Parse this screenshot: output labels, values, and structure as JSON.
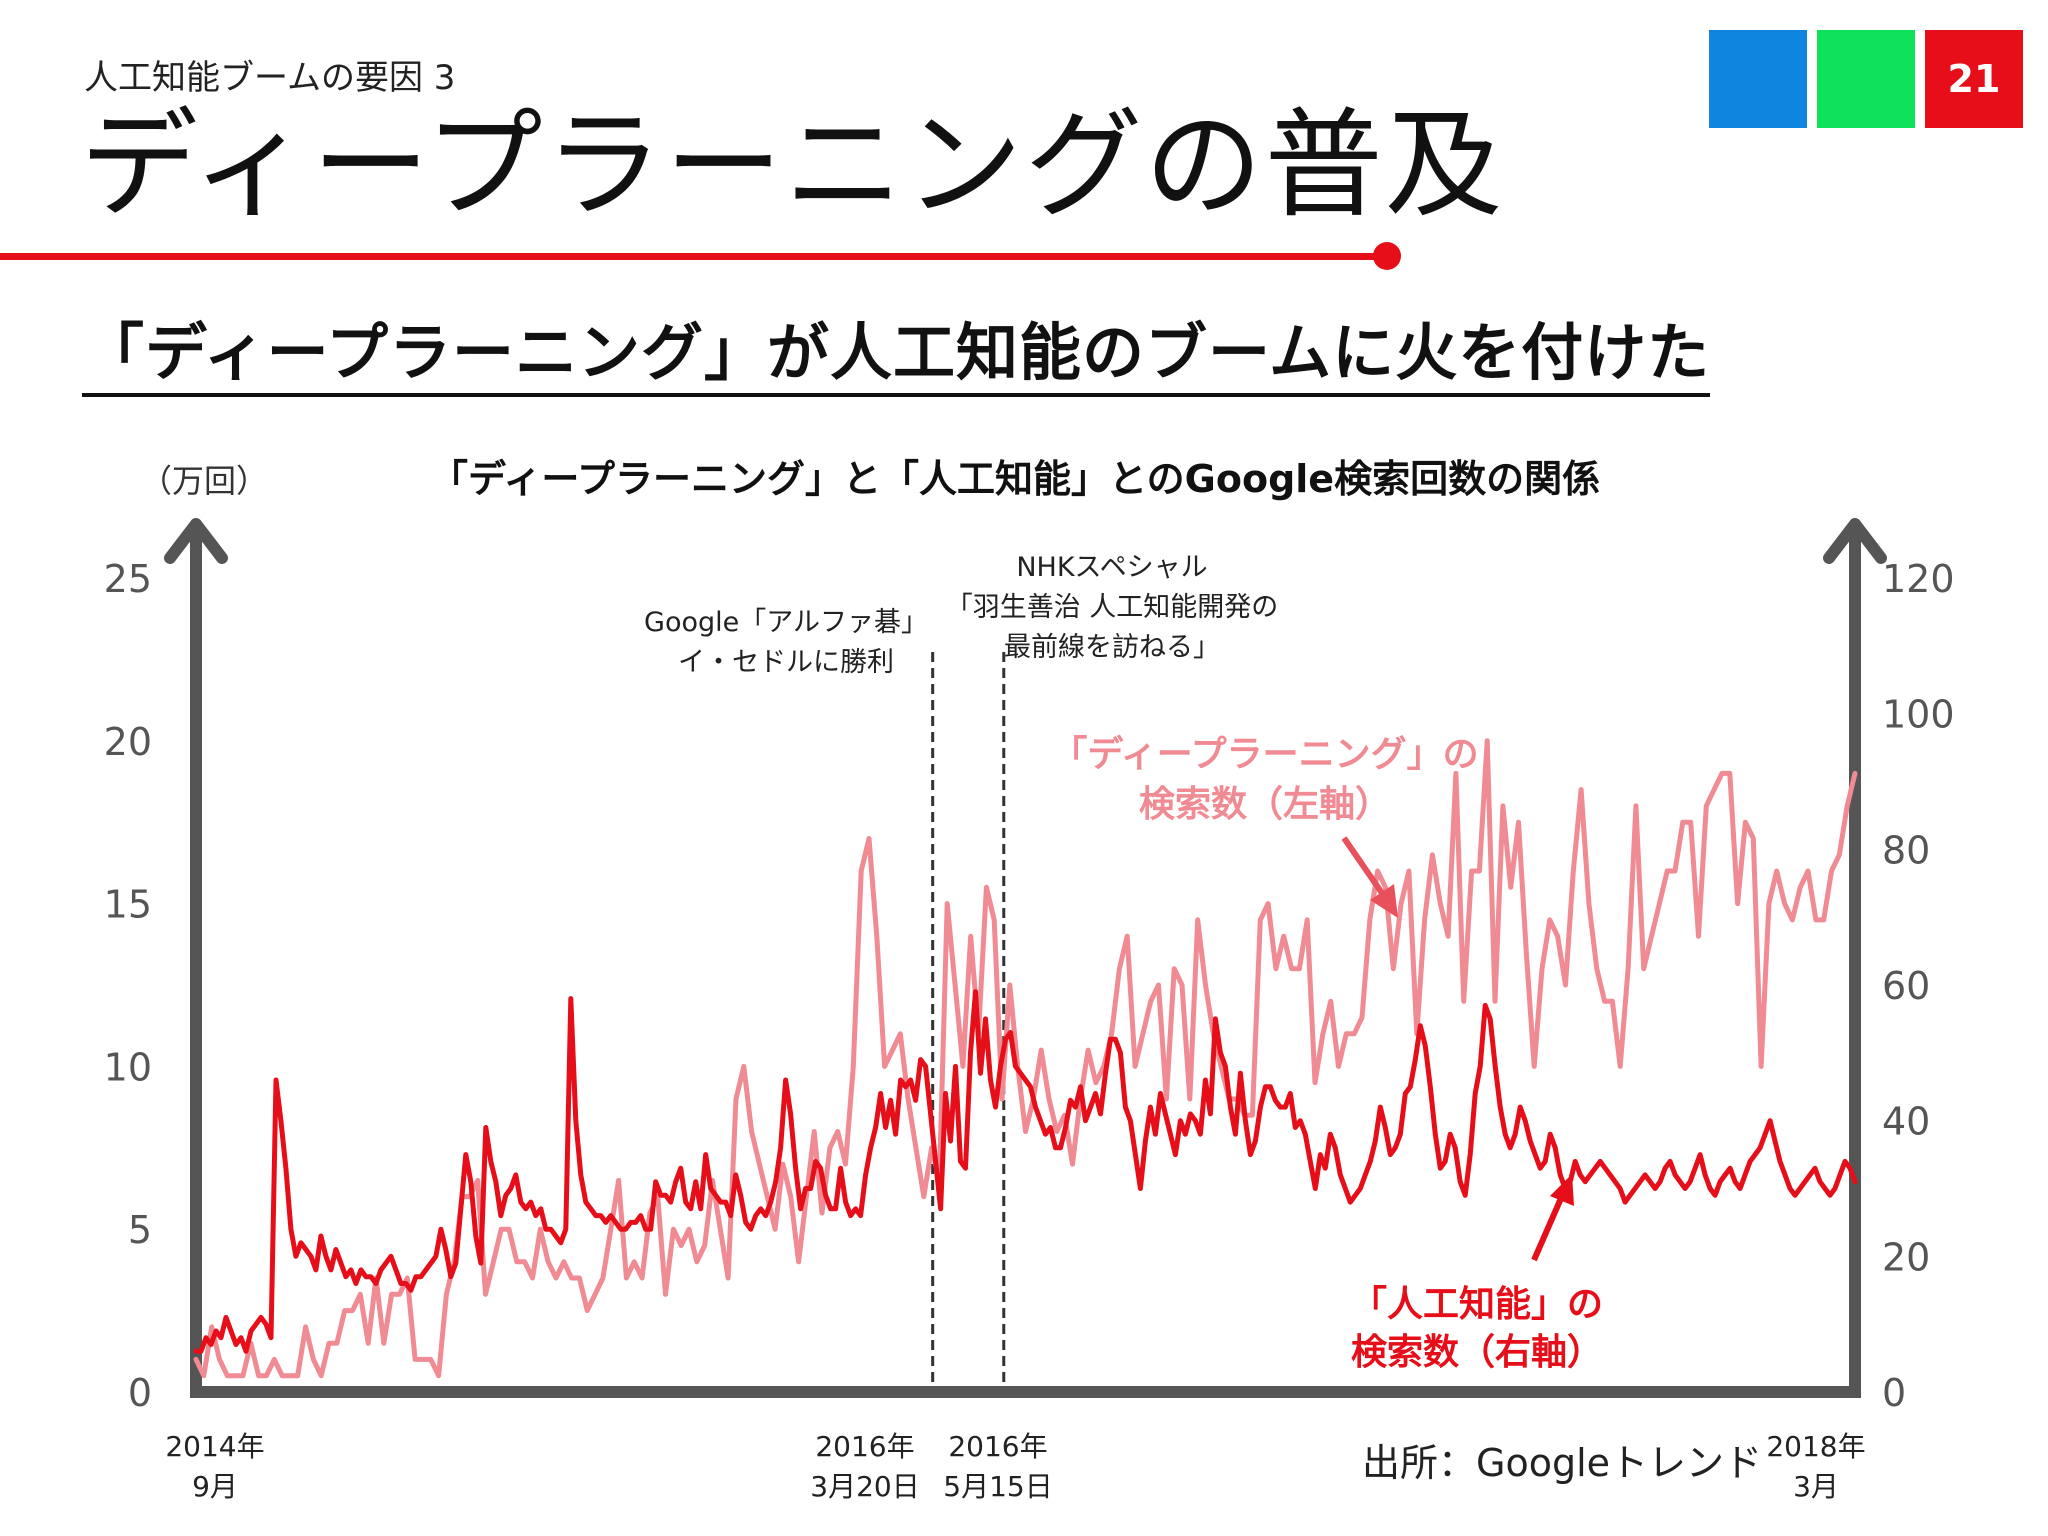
{
  "slide": {
    "eyebrow": "人工知能ブームの要因 3",
    "title": "ディープラーニングの普及",
    "page_number": "21",
    "headline": "「ディープラーニング」が人工知能のブームに火を付けた",
    "source": "出所：Googleトレンド"
  },
  "colors": {
    "accent_red": "#e60f19",
    "square_blue": "#1085e0",
    "square_green": "#0ee25a",
    "series_ai": "#e60f19",
    "series_dl": "#f08a93",
    "axis": "#555555"
  },
  "chart_data": {
    "type": "line",
    "title": "「ディープラーニング」と「人工知能」とのGoogle検索回数の関係",
    "left_axis_unit": "（万回）",
    "yticks_left": [
      "0",
      "5",
      "10",
      "15",
      "20",
      "25"
    ],
    "yticks_right": [
      "0",
      "20",
      "40",
      "60",
      "80",
      "100",
      "120"
    ],
    "ylim_left": [
      0,
      25
    ],
    "ylim_right": [
      0,
      120
    ],
    "x_range_months": [
      0,
      42
    ],
    "x_tick_labels": [
      {
        "line1": "2014年",
        "line2": "9月"
      },
      {
        "line1": "2016年",
        "line2": "3月20日"
      },
      {
        "line1": "2016年",
        "line2": "5月15日"
      },
      {
        "line1": "2018年",
        "line2": "3月"
      }
    ],
    "events": [
      {
        "date": "2016年3月20日",
        "lines": [
          "Google「アルファ碁」",
          "イ・セドルに勝利"
        ]
      },
      {
        "date": "2016年5月15日",
        "lines": [
          "NHKスペシャル",
          "「羽生善治 人工知能開発の",
          "最前線を訪ねる」"
        ]
      }
    ],
    "series": [
      {
        "name": "「ディープラーニング」の検索数（左軸）",
        "label_lines": [
          "「ディープラーニング」の",
          "検索数（左軸）"
        ],
        "axis": "left",
        "values": [
          1.0,
          0.5,
          2.0,
          1.0,
          0.5,
          0.5,
          0.5,
          1.5,
          0.5,
          0.5,
          1.0,
          0.5,
          0.5,
          0.5,
          2.0,
          1.0,
          0.5,
          1.5,
          1.5,
          2.5,
          2.5,
          3.0,
          1.5,
          3.5,
          1.5,
          3.0,
          3.0,
          3.5,
          1.0,
          1.0,
          1.0,
          0.5,
          3.0,
          4.0,
          6.0,
          6.0,
          6.5,
          3.0,
          4.0,
          5.0,
          5.0,
          4.0,
          4.0,
          3.5,
          5.0,
          4.0,
          3.5,
          4.0,
          3.5,
          3.5,
          2.5,
          3.0,
          3.5,
          5.0,
          6.5,
          3.5,
          4.0,
          3.5,
          5.5,
          6.0,
          3.0,
          5.0,
          4.5,
          5.0,
          4.0,
          4.5,
          6.5,
          5.0,
          3.5,
          9.0,
          10.0,
          8.0,
          7.0,
          6.0,
          5.0,
          7.0,
          6.0,
          4.0,
          6.0,
          8.0,
          5.5,
          7.5,
          8.0,
          7.0,
          10.0,
          16.0,
          17.0,
          14.0,
          10.0,
          10.5,
          11.0,
          9.0,
          7.5,
          6.0,
          7.5,
          6.5,
          15.0,
          12.5,
          10.0,
          14.0,
          11.0,
          15.5,
          14.5,
          9.0,
          12.5,
          10.0,
          8.0,
          9.0,
          10.5,
          9.0,
          8.0,
          8.5,
          7.0,
          9.0,
          10.5,
          9.5,
          10.0,
          11.0,
          13.0,
          14.0,
          10.0,
          11.0,
          12.0,
          12.5,
          9.0,
          13.0,
          12.5,
          9.0,
          14.5,
          12.5,
          11.0,
          10.0,
          9.0,
          9.0,
          8.5,
          8.5,
          14.5,
          15.0,
          13.0,
          14.0,
          13.0,
          13.0,
          14.5,
          9.5,
          11.0,
          12.0,
          10.0,
          11.0,
          11.0,
          11.5,
          14.5,
          16.0,
          15.5,
          13.0,
          15.0,
          16.0,
          11.0,
          14.5,
          16.5,
          15.0,
          14.0,
          19.0,
          12.0,
          16.0,
          16.0,
          20.0,
          12.0,
          18.0,
          15.5,
          17.5,
          13.5,
          10.0,
          13.0,
          14.5,
          14.0,
          12.5,
          16.0,
          18.5,
          15.0,
          13.0,
          12.0,
          12.0,
          10.0,
          13.0,
          18.0,
          13.0,
          14.0,
          15.0,
          16.0,
          16.0,
          17.5,
          17.5,
          14.0,
          18.0,
          18.5,
          19.0,
          19.0,
          15.0,
          17.5,
          17.0,
          10.0,
          15.0,
          16.0,
          15.0,
          14.5,
          15.5,
          16.0,
          14.5,
          14.5,
          16.0,
          16.5,
          18.0,
          19.0
        ]
      },
      {
        "name": "「人工知能」の検索数（右軸）",
        "label_lines": [
          "「人工知能」の",
          "検索数（右軸）"
        ],
        "axis": "right",
        "values": [
          6,
          6,
          8,
          7,
          9,
          8,
          11,
          9,
          7,
          8,
          6,
          9,
          10,
          11,
          10,
          8,
          46,
          40,
          33,
          24,
          20,
          22,
          21,
          20,
          18,
          23,
          20,
          18,
          21,
          19,
          17,
          18,
          16,
          18,
          17,
          17,
          16,
          18,
          19,
          20,
          18,
          16,
          16,
          15,
          17,
          17,
          18,
          19,
          20,
          24,
          21,
          17,
          19,
          27,
          35,
          31,
          23,
          19,
          39,
          34,
          31,
          26,
          29,
          30,
          32,
          28,
          27,
          28,
          26,
          27,
          24,
          24,
          23,
          22,
          24,
          58,
          40,
          32,
          28,
          27,
          26,
          26,
          25,
          26,
          25,
          24,
          24,
          25,
          25,
          26,
          24,
          24,
          31,
          29,
          29,
          28,
          31,
          33,
          28,
          27,
          31,
          27,
          35,
          30,
          29,
          28,
          28,
          26,
          32,
          29,
          25,
          24,
          26,
          27,
          26,
          28,
          31,
          36,
          46,
          41,
          33,
          27,
          30,
          30,
          34,
          33,
          29,
          27,
          27,
          33,
          28,
          26,
          27,
          26,
          32,
          36,
          39,
          44,
          39,
          43,
          38,
          46,
          45,
          46,
          43,
          49,
          48,
          41,
          34,
          27,
          44,
          37,
          48,
          34,
          33,
          50,
          59,
          47,
          55,
          46,
          42,
          48,
          52,
          53,
          48,
          47,
          46,
          45,
          42,
          40,
          38,
          39,
          36,
          36,
          39,
          43,
          42,
          45,
          40,
          42,
          44,
          41,
          47,
          52,
          52,
          50,
          42,
          40,
          35,
          30,
          37,
          42,
          38,
          44,
          41,
          38,
          35,
          40,
          38,
          41,
          40,
          38,
          46,
          41,
          55,
          50,
          48,
          42,
          38,
          47,
          40,
          35,
          37,
          42,
          45,
          45,
          43,
          42,
          42,
          44,
          39,
          40,
          38,
          34,
          30,
          35,
          33,
          38,
          36,
          32,
          30,
          28,
          29,
          30,
          32,
          34,
          37,
          42,
          39,
          35,
          36,
          38,
          44,
          45,
          49,
          54,
          51,
          45,
          38,
          33,
          34,
          38,
          36,
          31,
          29,
          35,
          44,
          48,
          57,
          55,
          48,
          42,
          38,
          36,
          38,
          42,
          40,
          37,
          35,
          33,
          34,
          38,
          36,
          32,
          30,
          31,
          34,
          32,
          31,
          32,
          33,
          34,
          33,
          32,
          31,
          30,
          28,
          29,
          30,
          31,
          32,
          31,
          30,
          31,
          33,
          34,
          32,
          31,
          30,
          31,
          33,
          35,
          32,
          30,
          29,
          31,
          32,
          33,
          31,
          30,
          32,
          34,
          35,
          36,
          38,
          40,
          37,
          34,
          32,
          30,
          29,
          30,
          31,
          32,
          33,
          31,
          30,
          29,
          30,
          32,
          34,
          33,
          31
        ]
      }
    ]
  }
}
